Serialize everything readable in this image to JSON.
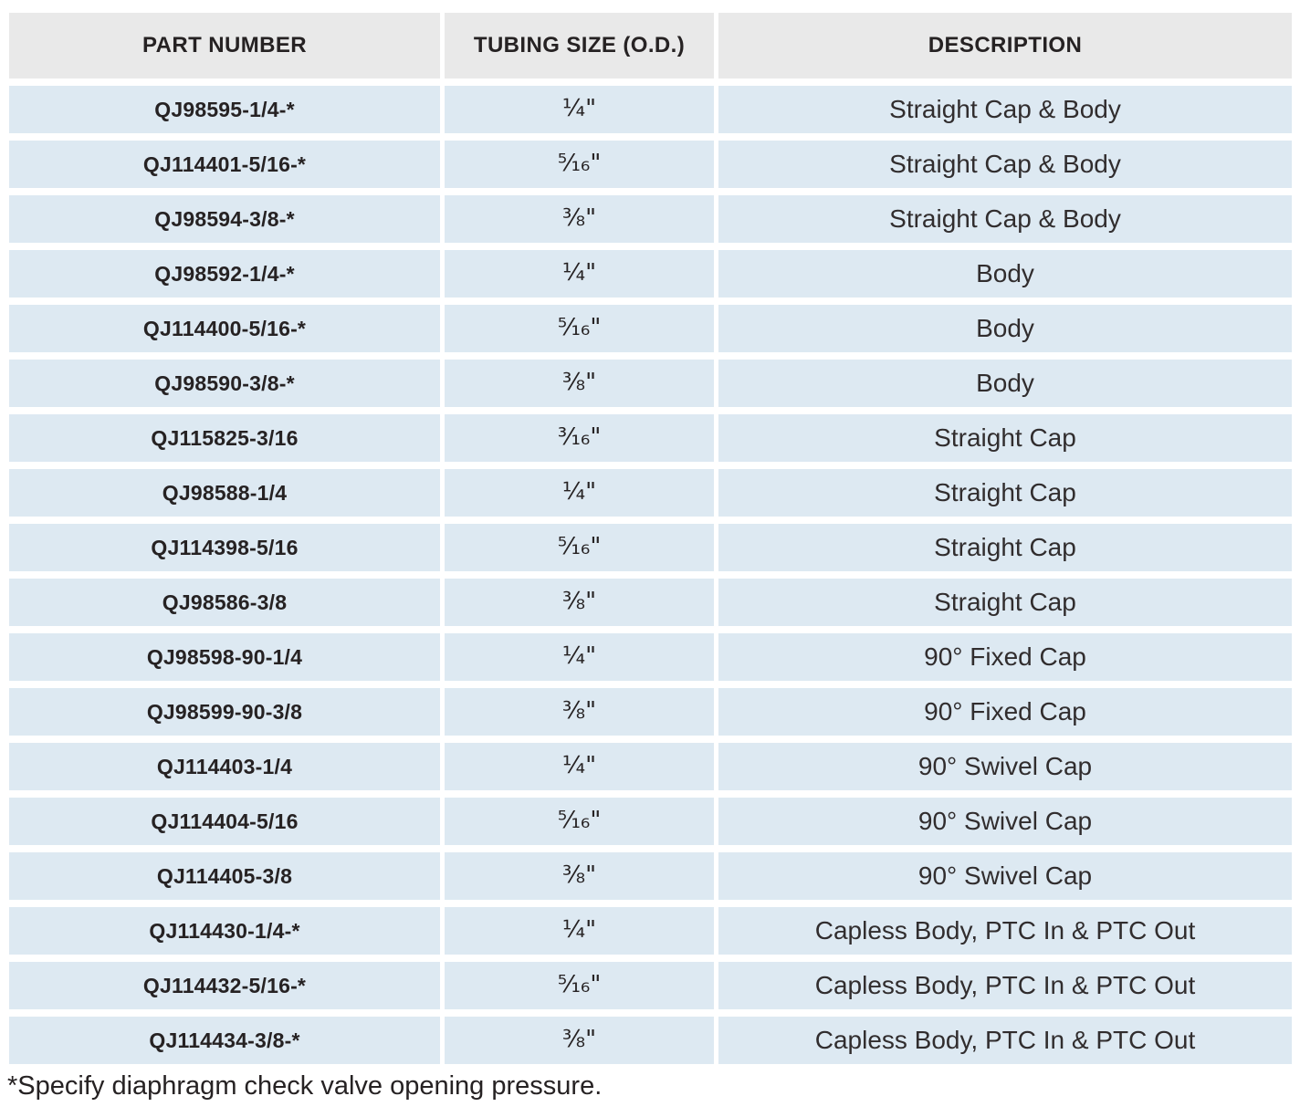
{
  "table": {
    "columns": [
      {
        "key": "part_number",
        "label": "PART NUMBER"
      },
      {
        "key": "tubing_size",
        "label": "TUBING SIZE (O.D.)"
      },
      {
        "key": "description",
        "label": "DESCRIPTION"
      }
    ],
    "rows": [
      {
        "part_number": "QJ98595-1/4-*",
        "tubing_size": "¼\"",
        "description": "Straight Cap & Body"
      },
      {
        "part_number": "QJ114401-5/16-*",
        "tubing_size": "⁵⁄₁₆\"",
        "description": "Straight Cap & Body"
      },
      {
        "part_number": "QJ98594-3/8-*",
        "tubing_size": "⅜\"",
        "description": "Straight Cap & Body"
      },
      {
        "part_number": "QJ98592-1/4-*",
        "tubing_size": "¼\"",
        "description": "Body"
      },
      {
        "part_number": "QJ114400-5/16-*",
        "tubing_size": "⁵⁄₁₆\"",
        "description": "Body"
      },
      {
        "part_number": "QJ98590-3/8-*",
        "tubing_size": "⅜\"",
        "description": "Body"
      },
      {
        "part_number": "QJ115825-3/16",
        "tubing_size": "³⁄₁₆\"",
        "description": "Straight Cap"
      },
      {
        "part_number": "QJ98588-1/4",
        "tubing_size": "¼\"",
        "description": "Straight Cap"
      },
      {
        "part_number": "QJ114398-5/16",
        "tubing_size": "⁵⁄₁₆\"",
        "description": "Straight Cap"
      },
      {
        "part_number": "QJ98586-3/8",
        "tubing_size": "⅜\"",
        "description": "Straight Cap"
      },
      {
        "part_number": "QJ98598-90-1/4",
        "tubing_size": "¼\"",
        "description": "90° Fixed Cap"
      },
      {
        "part_number": "QJ98599-90-3/8",
        "tubing_size": "⅜\"",
        "description": "90° Fixed Cap"
      },
      {
        "part_number": "QJ114403-1/4",
        "tubing_size": "¼\"",
        "description": "90° Swivel Cap"
      },
      {
        "part_number": "QJ114404-5/16",
        "tubing_size": "⁵⁄₁₆\"",
        "description": "90° Swivel Cap"
      },
      {
        "part_number": "QJ114405-3/8",
        "tubing_size": "⅜\"",
        "description": "90° Swivel Cap"
      },
      {
        "part_number": "QJ114430-1/4-*",
        "tubing_size": "¼\"",
        "description": "Capless Body, PTC In & PTC Out"
      },
      {
        "part_number": "QJ114432-5/16-*",
        "tubing_size": "⁵⁄₁₆\"",
        "description": "Capless Body, PTC In & PTC Out"
      },
      {
        "part_number": "QJ114434-3/8-*",
        "tubing_size": "⅜\"",
        "description": "Capless Body, PTC In & PTC Out"
      }
    ]
  },
  "footnote": "*Specify diaphragm check valve opening pressure.",
  "colors": {
    "header_bg": "#e9e9e9",
    "row_bg": "#dde9f2",
    "text": "#262223",
    "gutter": "#ffffff"
  }
}
